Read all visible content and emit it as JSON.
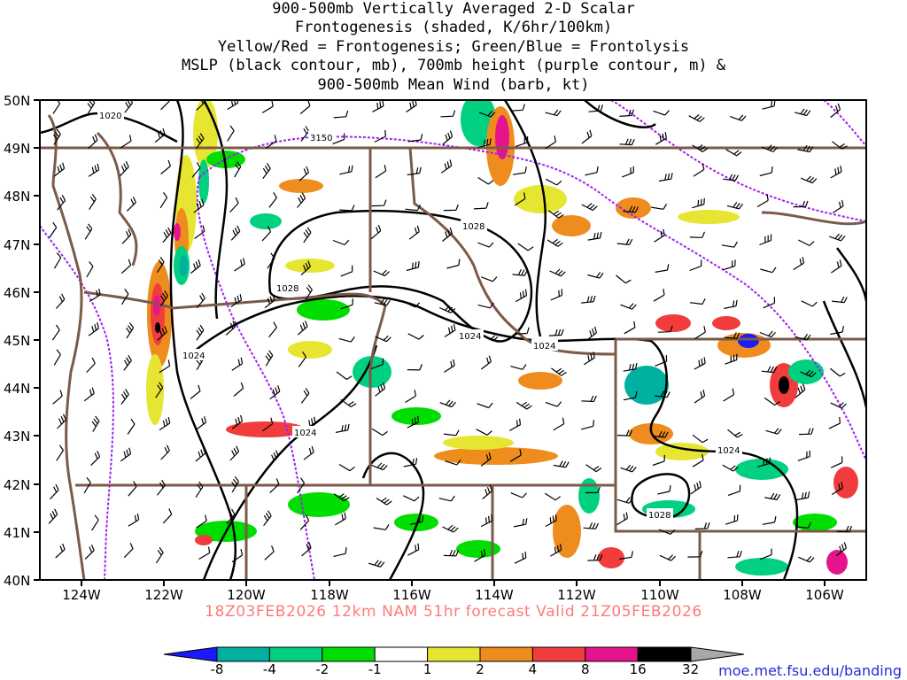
{
  "title": {
    "lines": [
      "900-500mb Vertically Averaged 2-D Scalar",
      "Frontogenesis (shaded, K/6hr/100km)",
      "Yellow/Red = Frontogenesis;  Green/Blue = Frontolysis",
      "MSLP (black contour, mb), 700mb height (purple contour, m) &",
      "900-500mb Mean Wind (barb, kt)"
    ]
  },
  "map": {
    "lat_labels": [
      "50N",
      "49N",
      "48N",
      "47N",
      "46N",
      "45N",
      "44N",
      "43N",
      "42N",
      "41N",
      "40N"
    ],
    "lon_labels": [
      "124W",
      "122W",
      "120W",
      "118W",
      "116W",
      "114W",
      "112W",
      "110W",
      "108W",
      "106W"
    ],
    "lat_range": [
      40,
      50
    ],
    "lon_range": [
      -125,
      -105
    ],
    "mslp_labels": [
      "1020",
      "1028",
      "1028",
      "1024",
      "1024",
      "1024",
      "1024",
      "1024",
      "1028"
    ],
    "height_labels": [
      "3150"
    ],
    "colors": {
      "mslp_contour": "#000000",
      "height_contour": "#a020f0",
      "borders": "#7b5a48",
      "wind_barbs": "#000000"
    }
  },
  "colorbar": {
    "tick_labels": [
      "-8",
      "-4",
      "-2",
      "-1",
      "1",
      "2",
      "4",
      "8",
      "16",
      "32"
    ],
    "colors": [
      "#1a1aff",
      "#00b0a0",
      "#00d080",
      "#00dd00",
      "#ffffff",
      "#e6e632",
      "#ee8c1e",
      "#f03c3c",
      "#e6148c",
      "#000000",
      "#a8a8a8"
    ]
  },
  "footer": {
    "valid_text": "18Z03FEB2026 12km NAM 51hr forecast Valid 21Z05FEB2026",
    "credit_text": "moe.met.fsu.edu/banding"
  }
}
